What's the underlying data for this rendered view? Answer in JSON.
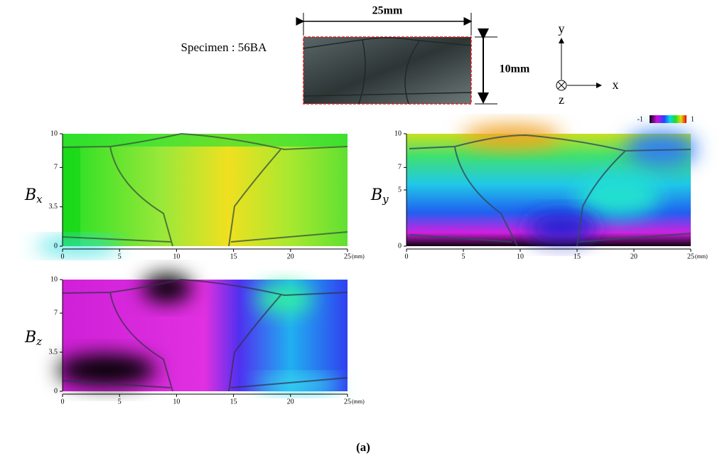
{
  "header": {
    "specimen_label": "Specimen : 56BA",
    "width_label": "25mm",
    "height_label": "10mm",
    "axes": {
      "y": "y",
      "x": "x",
      "z": "z"
    }
  },
  "colorbar": {
    "min_label": "-1",
    "max_label": "1"
  },
  "panels": [
    {
      "label": "B",
      "subscript": "x",
      "xlim": [
        0,
        25
      ],
      "ylim": [
        0,
        10
      ],
      "xticks": [
        0,
        5,
        10,
        15,
        20,
        25
      ],
      "yticks": [
        0,
        3.5,
        7,
        10
      ],
      "unit": "(mm)"
    },
    {
      "label": "B",
      "subscript": "y",
      "xlim": [
        0,
        25
      ],
      "ylim": [
        0,
        10
      ],
      "xticks": [
        0,
        5,
        10,
        15,
        20,
        25
      ],
      "yticks": [
        0,
        5,
        7,
        10
      ],
      "unit": "(mm)"
    },
    {
      "label": "B",
      "subscript": "z",
      "xlim": [
        0,
        25
      ],
      "ylim": [
        0,
        10
      ],
      "xticks": [
        0,
        5,
        10,
        15,
        20,
        25
      ],
      "yticks": [
        0,
        3.5,
        7,
        10
      ],
      "unit": "(mm)"
    }
  ],
  "caption": "(a)"
}
